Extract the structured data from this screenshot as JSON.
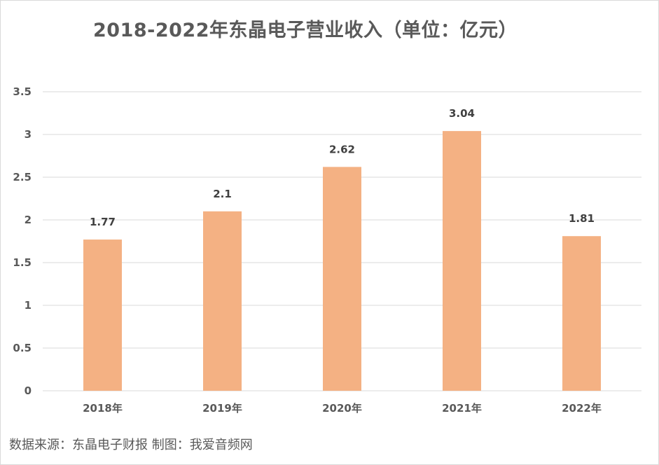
{
  "chart_data": {
    "type": "bar",
    "title": "2018-2022年东晶电子营业收入（单位：亿元）",
    "categories": [
      "2018年",
      "2019年",
      "2020年",
      "2021年",
      "2022年"
    ],
    "values": [
      1.77,
      2.1,
      2.62,
      3.04,
      1.81
    ],
    "data_labels": [
      "1.77",
      "2.1",
      "2.62",
      "3.04",
      "1.81"
    ],
    "y_ticks": [
      "0",
      "0.5",
      "1",
      "1.5",
      "2",
      "2.5",
      "3",
      "3.5"
    ],
    "ylim": [
      0,
      3.5
    ],
    "grid": true,
    "legend": "none",
    "bar_color": "#f4b183"
  },
  "source_note": "数据来源：东晶电子财报 制图：我爱音频网"
}
